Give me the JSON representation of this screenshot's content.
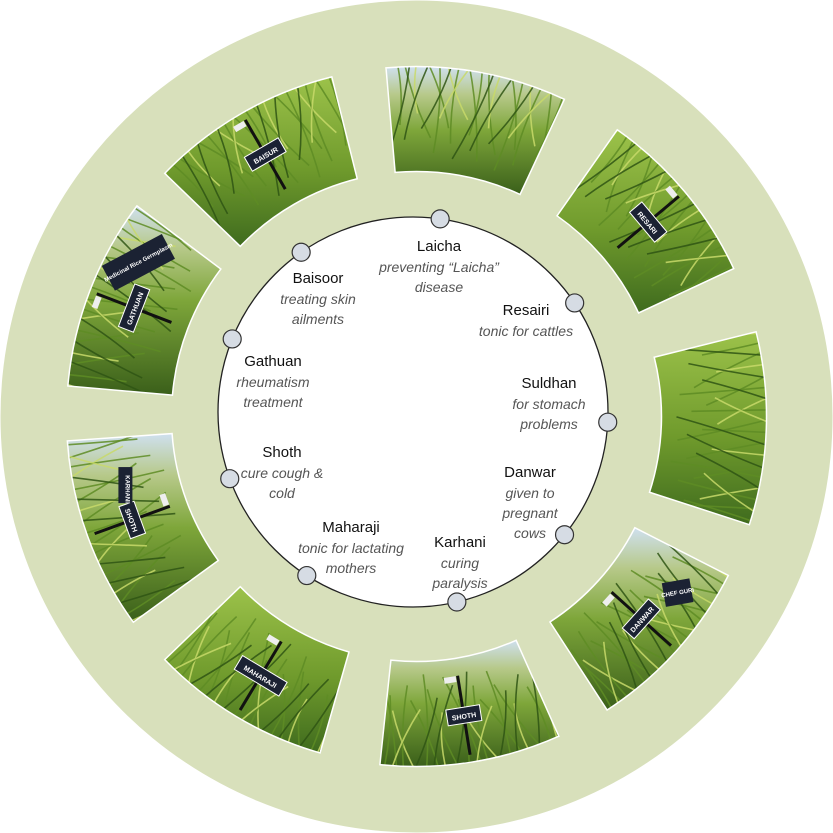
{
  "colors": {
    "background_disc": "#d8e0bb",
    "inner_circle": "#ffffff",
    "node_fill": "#d6dce4",
    "grass_dark": "#3f6b1e",
    "grass_light": "#9cc24a",
    "sky": "#cfe0ef",
    "sign": "#1b2233"
  },
  "varieties": [
    {
      "name": "Laicha",
      "use": "preventing “Laicha” disease",
      "sign_text": ""
    },
    {
      "name": "Resairi",
      "use": "tonic for cattles",
      "sign_text": "RESARI"
    },
    {
      "name": "Suldhan",
      "use": "for stomach problems",
      "sign_text": ""
    },
    {
      "name": "Danwar",
      "use": "given to pregnant cows",
      "sign_text": "DANWAR"
    },
    {
      "name": "Karhani",
      "use": "curing paralysis",
      "sign_text": "SHOTH"
    },
    {
      "name": "Maharaji",
      "use": "tonic for lactating mothers",
      "sign_text": "MAHARAJI"
    },
    {
      "name": "Shoth",
      "use": "cure cough & cold",
      "sign_text": "SHOTH"
    },
    {
      "name": "Gathuan",
      "use": "rheumatism treatment",
      "sign_text": "GATHUAN"
    },
    {
      "name": "Baisoor",
      "use": "treating skin ailments",
      "sign_text": "BAISUR"
    }
  ],
  "extra_sign_texts": {
    "karhani_vertical": "KARHANI",
    "danwar_side": "CHEF GURI",
    "gathuan_banner": "Medicinal Rice Germplasm"
  }
}
